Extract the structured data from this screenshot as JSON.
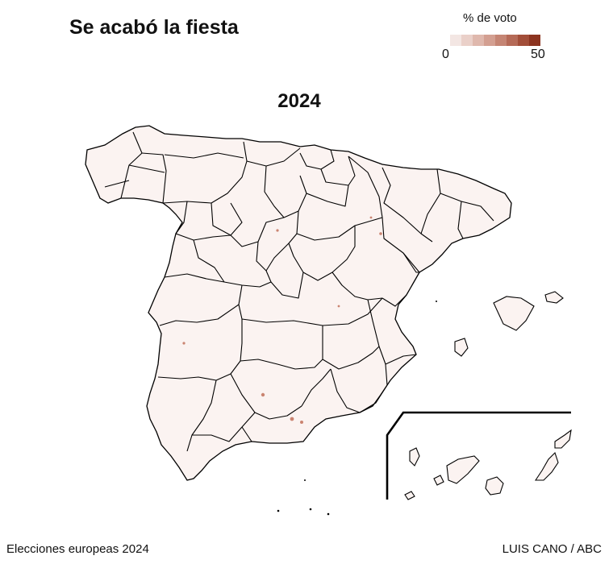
{
  "title": "Se acabó la fiesta",
  "legend": {
    "title": "% de voto",
    "min": "0",
    "max": "50",
    "colors": [
      "#f3e6e3",
      "#ead0c9",
      "#dfb8ad",
      "#d39f91",
      "#c58574",
      "#b56a57",
      "#a24e39",
      "#8c3420"
    ]
  },
  "map": {
    "year": "2024",
    "base_fill": "#fbf3f1",
    "border_color": "#000000",
    "hotspot_color": "#b5543b"
  },
  "footer": {
    "source": "Elecciones europeas 2024",
    "credit": "LUIS CANO / ABC"
  }
}
